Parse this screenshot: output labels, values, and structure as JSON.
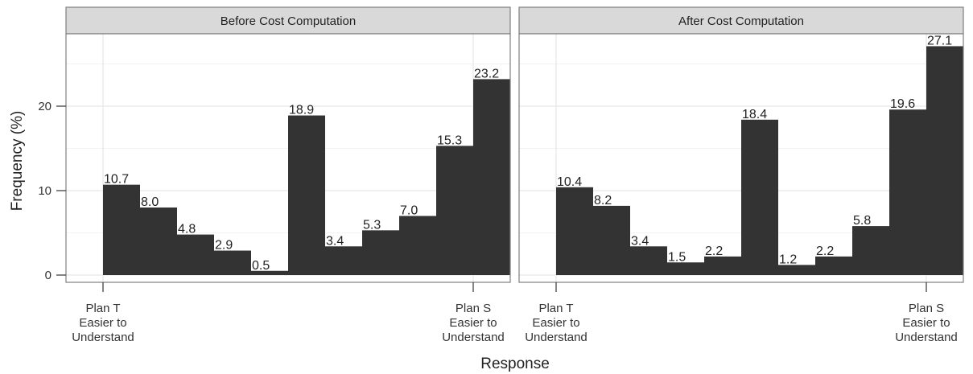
{
  "chart_data": {
    "type": "bar",
    "ylabel": "Frequency (%)",
    "xlabel": "Response",
    "ylim": [
      0,
      29
    ],
    "y_ticks": [
      0,
      10,
      20
    ],
    "x_tick_labels": [
      "Plan T\nEasier to\nUnderstand",
      "Plan S\nEasier to\nUnderstand"
    ],
    "grid": true,
    "panels": [
      {
        "title": "Before Cost Computation",
        "values": [
          10.7,
          8.0,
          4.8,
          2.9,
          0.5,
          18.9,
          3.4,
          5.3,
          7.0,
          15.3,
          23.2
        ],
        "labels": [
          "10.7",
          "8.0",
          "4.8",
          "2.9",
          "0.5",
          "18.9",
          "3.4",
          "5.3",
          "7.0",
          "15.3",
          "23.2"
        ]
      },
      {
        "title": "After Cost Computation",
        "values": [
          10.4,
          8.2,
          3.4,
          1.5,
          2.2,
          18.4,
          1.2,
          2.2,
          5.8,
          19.6,
          27.1
        ],
        "labels": [
          "10.4",
          "8.2",
          "3.4",
          "1.5",
          "2.2",
          "18.4",
          "1.2",
          "2.2",
          "5.8",
          "19.6",
          "27.1"
        ]
      }
    ]
  },
  "colors": {
    "bar": "#333333",
    "strip_bg": "#d9d9d9",
    "panel_border": "#7f7f7f",
    "grid_major": "#e6e6e6",
    "grid_minor": "#f3f3f3"
  }
}
